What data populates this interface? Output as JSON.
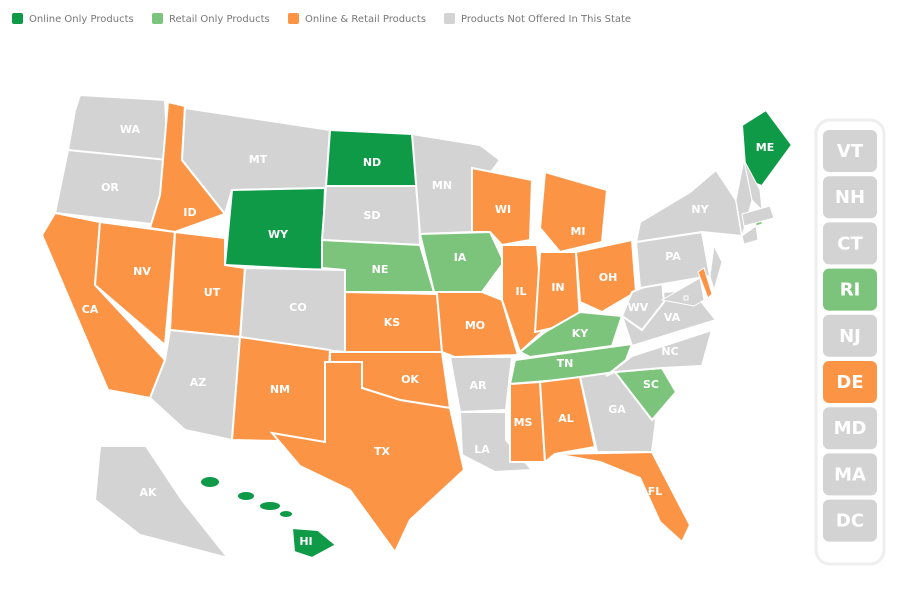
{
  "legend": [
    {
      "label": "Online Only Products",
      "color": "#0e9a47"
    },
    {
      "label": "Retail Only Products",
      "color": "#7cc47b"
    },
    {
      "label": "Online & Retail Products",
      "color": "#fc9446"
    },
    {
      "label": "Products Not Offered In This State",
      "color": "#d3d3d3"
    }
  ],
  "states": [
    {
      "label": "WA",
      "color": "#d3d3d3"
    },
    {
      "label": "OR",
      "color": "#d3d3d3"
    },
    {
      "label": "CA",
      "color": "#fc9446"
    },
    {
      "label": "NV",
      "color": "#fc9446"
    },
    {
      "label": "ID",
      "color": "#fc9446"
    },
    {
      "label": "MT",
      "color": "#d3d3d3"
    },
    {
      "label": "WY",
      "color": "#0e9a47"
    },
    {
      "label": "UT",
      "color": "#fc9446"
    },
    {
      "label": "CO",
      "color": "#d3d3d3"
    },
    {
      "label": "AZ",
      "color": "#d3d3d3"
    },
    {
      "label": "NM",
      "color": "#fc9446"
    },
    {
      "label": "ND",
      "color": "#0e9a47"
    },
    {
      "label": "SD",
      "color": "#d3d3d3"
    },
    {
      "label": "NE",
      "color": "#7cc47b"
    },
    {
      "label": "KS",
      "color": "#fc9446"
    },
    {
      "label": "OK",
      "color": "#fc9446"
    },
    {
      "label": "TX",
      "color": "#fc9446"
    },
    {
      "label": "MN",
      "color": "#d3d3d3"
    },
    {
      "label": "IA",
      "color": "#7cc47b"
    },
    {
      "label": "MO",
      "color": "#fc9446"
    },
    {
      "label": "AR",
      "color": "#d3d3d3"
    },
    {
      "label": "LA",
      "color": "#d3d3d3"
    },
    {
      "label": "WI",
      "color": "#fc9446"
    },
    {
      "label": "IL",
      "color": "#fc9446"
    },
    {
      "label": "MI",
      "color": "#fc9446"
    },
    {
      "label": "IN",
      "color": "#fc9446"
    },
    {
      "label": "OH",
      "color": "#fc9446"
    },
    {
      "label": "KY",
      "color": "#7cc47b"
    },
    {
      "label": "TN",
      "color": "#7cc47b"
    },
    {
      "label": "MS",
      "color": "#fc9446"
    },
    {
      "label": "AL",
      "color": "#fc9446"
    },
    {
      "label": "GA",
      "color": "#d3d3d3"
    },
    {
      "label": "FL",
      "color": "#fc9446"
    },
    {
      "label": "SC",
      "color": "#7cc47b"
    },
    {
      "label": "NC",
      "color": "#d3d3d3"
    },
    {
      "label": "VA",
      "color": "#d3d3d3"
    },
    {
      "label": "WV",
      "color": "#d3d3d3"
    },
    {
      "label": "PA",
      "color": "#d3d3d3"
    },
    {
      "label": "NY",
      "color": "#d3d3d3"
    },
    {
      "label": "ME",
      "color": "#0e9a47"
    },
    {
      "label": "AK",
      "color": "#d3d3d3"
    },
    {
      "label": "HI",
      "color": "#0e9a47"
    }
  ],
  "sidebar": [
    {
      "label": "VT",
      "color": "#d3d3d3"
    },
    {
      "label": "NH",
      "color": "#d3d3d3"
    },
    {
      "label": "CT",
      "color": "#d3d3d3"
    },
    {
      "label": "RI",
      "color": "#7cc47b"
    },
    {
      "label": "NJ",
      "color": "#d3d3d3"
    },
    {
      "label": "DE",
      "color": "#fc9446"
    },
    {
      "label": "MD",
      "color": "#d3d3d3"
    },
    {
      "label": "MA",
      "color": "#d3d3d3"
    },
    {
      "label": "DC",
      "color": "#d3d3d3"
    }
  ]
}
